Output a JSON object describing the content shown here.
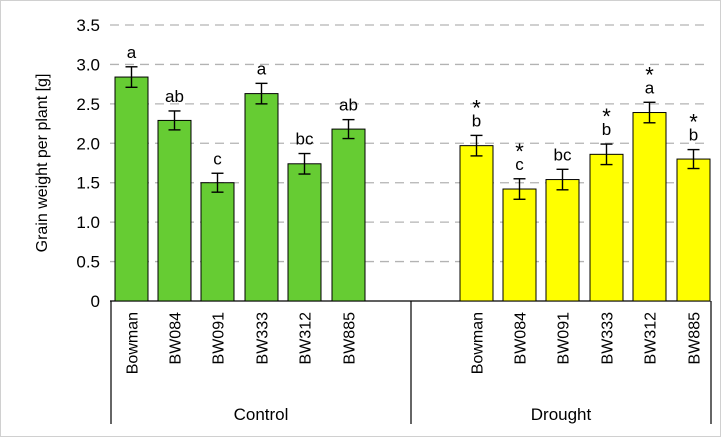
{
  "chart_data": {
    "type": "bar",
    "ylabel": "Grain weight per plant  [g]",
    "ylim": [
      0,
      3.5
    ],
    "yticks": [
      "0",
      "0.5",
      "1.0",
      "1.5",
      "2.0",
      "2.5",
      "3.0",
      "3.5"
    ],
    "grid": "horizontal dashed",
    "legend": "none",
    "groups": [
      {
        "name": "Control",
        "color": "#66cc33",
        "categories": [
          "Bowman",
          "BW084",
          "BW091",
          "BW333",
          "BW312",
          "BW885"
        ],
        "values": [
          2.84,
          2.29,
          1.5,
          2.63,
          1.74,
          2.18
        ],
        "errors": [
          0.13,
          0.12,
          0.12,
          0.13,
          0.13,
          0.12
        ],
        "letters": [
          "a",
          "ab",
          "c",
          "a",
          "bc",
          "ab"
        ],
        "stars": [
          "",
          "",
          "",
          "",
          "",
          ""
        ]
      },
      {
        "name": "Drought",
        "color": "#ffff00",
        "categories": [
          "Bowman",
          "BW084",
          "BW091",
          "BW333",
          "BW312",
          "BW885"
        ],
        "values": [
          1.97,
          1.42,
          1.54,
          1.86,
          2.39,
          1.8
        ],
        "errors": [
          0.13,
          0.13,
          0.13,
          0.13,
          0.13,
          0.12
        ],
        "letters": [
          "b",
          "c",
          "bc",
          "b",
          "a",
          "b"
        ],
        "stars": [
          "*",
          "*",
          "",
          "*",
          "*",
          "*"
        ]
      }
    ]
  }
}
